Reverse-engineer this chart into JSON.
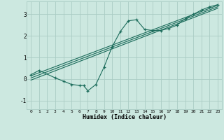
{
  "xlabel": "Humidex (Indice chaleur)",
  "bg_color": "#cce8e0",
  "grid_color": "#aaccc4",
  "line_color": "#1a6b5a",
  "xlim": [
    -0.5,
    23.5
  ],
  "ylim": [
    -1.4,
    3.6
  ],
  "yticks": [
    -1,
    0,
    1,
    2,
    3
  ],
  "xticks": [
    0,
    1,
    2,
    3,
    4,
    5,
    6,
    7,
    8,
    9,
    10,
    11,
    12,
    13,
    14,
    15,
    16,
    17,
    18,
    19,
    20,
    21,
    22,
    23
  ],
  "curve_x": [
    0,
    1,
    3,
    4,
    5,
    6,
    6.5,
    7,
    8,
    9,
    10,
    11,
    12,
    13,
    14,
    15,
    16,
    17,
    18,
    19,
    20,
    21,
    22,
    23
  ],
  "curve_y": [
    0.2,
    0.4,
    0.05,
    -0.1,
    -0.25,
    -0.3,
    -0.3,
    -0.55,
    -0.25,
    0.55,
    1.5,
    2.2,
    2.7,
    2.75,
    2.3,
    2.25,
    2.25,
    2.35,
    2.5,
    2.8,
    3.0,
    3.2,
    3.35,
    3.45
  ],
  "line1_x": [
    0,
    23
  ],
  "line1_y": [
    0.15,
    3.42
  ],
  "line2_x": [
    0,
    23
  ],
  "line2_y": [
    -0.05,
    3.28
  ],
  "line3_x": [
    0,
    23
  ],
  "line3_y": [
    0.05,
    3.35
  ]
}
